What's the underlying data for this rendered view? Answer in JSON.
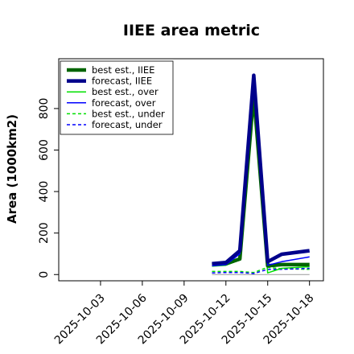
{
  "chart_data": {
    "type": "line",
    "title": "IIEE area metric",
    "xlabel": "",
    "ylabel": "Area (1000km2)",
    "x_ticks": [
      "2025-10-03",
      "2025-10-06",
      "2025-10-09",
      "2025-10-12",
      "2025-10-15",
      "2025-10-18"
    ],
    "highlight_tick": "2025-10-09",
    "highlight_color": "#228b22",
    "xlim": [
      "2025-09-30",
      "2025-10-19"
    ],
    "y_ticks": [
      0,
      200,
      400,
      600,
      800
    ],
    "ylim": [
      -30,
      1040
    ],
    "legend_position": "top-left",
    "grid": false,
    "series": [
      {
        "name": "best est., IIEE",
        "color": "#006400",
        "width": 4.5,
        "dash": "",
        "x": [
          "2025-10-11",
          "2025-10-12",
          "2025-10-13",
          "2025-10-14",
          "2025-10-15",
          "2025-10-16",
          "2025-10-18"
        ],
        "y": [
          48,
          52,
          75,
          870,
          42,
          48,
          48
        ]
      },
      {
        "name": "forecast, IIEE",
        "color": "#00008b",
        "width": 4.5,
        "dash": "",
        "x": [
          "2025-10-11",
          "2025-10-12",
          "2025-10-13",
          "2025-10-14",
          "2025-10-15",
          "2025-10-16",
          "2025-10-18"
        ],
        "y": [
          52,
          58,
          115,
          960,
          62,
          98,
          115
        ]
      },
      {
        "name": "best est., over",
        "color": "#00e000",
        "width": 1.5,
        "dash": "",
        "x": [
          "2025-10-11",
          "2025-10-12",
          "2025-10-13",
          "2025-10-14",
          "2025-10-15",
          "2025-10-16",
          "2025-10-18"
        ],
        "y": [
          40,
          45,
          70,
          850,
          8,
          30,
          38
        ]
      },
      {
        "name": "forecast, over",
        "color": "#0000ff",
        "width": 1.5,
        "dash": "",
        "x": [
          "2025-10-11",
          "2025-10-12",
          "2025-10-13",
          "2025-10-14",
          "2025-10-15",
          "2025-10-16",
          "2025-10-18"
        ],
        "y": [
          42,
          48,
          100,
          940,
          45,
          62,
          85
        ]
      },
      {
        "name": "best est., under",
        "color": "#00e000",
        "width": 1.5,
        "dash": "4,3",
        "x": [
          "2025-10-11",
          "2025-10-12",
          "2025-10-13",
          "2025-10-14",
          "2025-10-15",
          "2025-10-16",
          "2025-10-18"
        ],
        "y": [
          15,
          15,
          15,
          10,
          35,
          28,
          25
        ]
      },
      {
        "name": "forecast, under",
        "color": "#0000ff",
        "width": 1.5,
        "dash": "4,3",
        "x": [
          "2025-10-11",
          "2025-10-12",
          "2025-10-13",
          "2025-10-14",
          "2025-10-15",
          "2025-10-16",
          "2025-10-18"
        ],
        "y": [
          8,
          10,
          10,
          5,
          25,
          25,
          30
        ]
      },
      {
        "name": "",
        "color": "#999999",
        "width": 1,
        "dash": "",
        "x": [
          "2025-10-11",
          "2025-10-18"
        ],
        "y": [
          0,
          0
        ]
      }
    ]
  }
}
